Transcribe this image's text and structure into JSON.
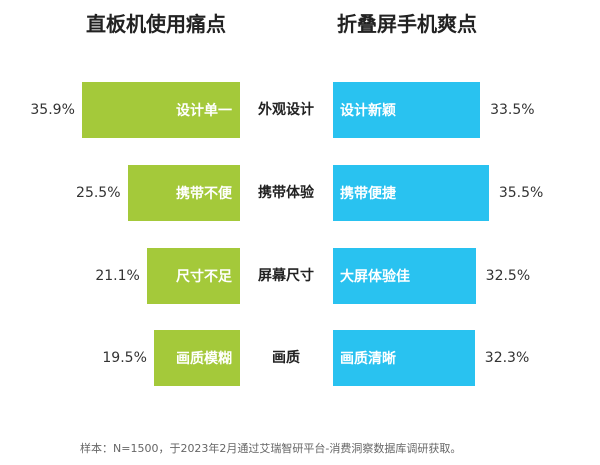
{
  "chart_data": {
    "type": "bar",
    "layout": "butterfly",
    "categories": [
      "外观设计",
      "携带体验",
      "屏幕尺寸",
      "画质"
    ],
    "series": [
      {
        "name": "直板机使用痛点",
        "side": "left",
        "color": "#a4c93a",
        "values": [
          35.9,
          25.5,
          21.1,
          19.5
        ],
        "value_labels": [
          "35.9%",
          "25.5%",
          "21.1%",
          "19.5%"
        ],
        "bar_labels": [
          "设计单一",
          "携带不便",
          "尺寸不足",
          "画质模糊"
        ]
      },
      {
        "name": "折叠屏手机爽点",
        "side": "right",
        "color": "#29c2f0",
        "values": [
          33.5,
          35.5,
          32.5,
          32.3
        ],
        "value_labels": [
          "33.5%",
          "35.5%",
          "32.5%",
          "32.3%"
        ],
        "bar_labels": [
          "设计新颖",
          "携带便捷",
          "大屏体验佳",
          "画质清晰"
        ]
      }
    ],
    "unit": "%",
    "grid": false,
    "footnote": "样本：N=1500，于2023年2月通过艾瑞智研平台-消费洞察数据库调研获取。"
  }
}
